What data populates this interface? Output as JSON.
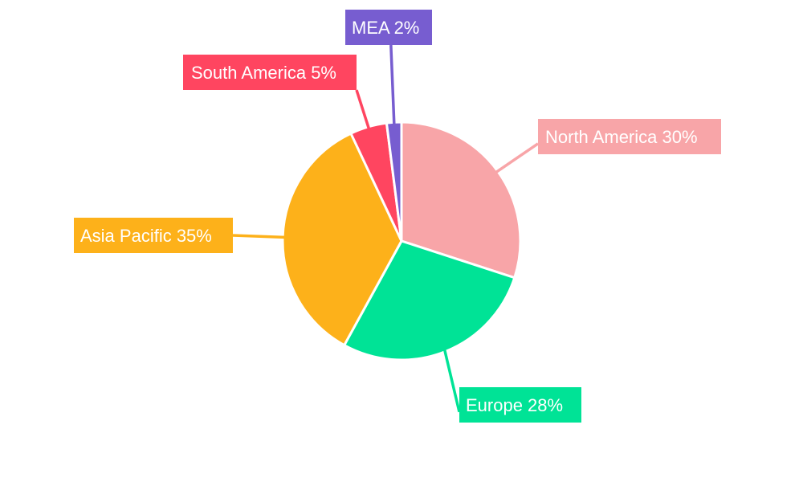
{
  "chart_data": {
    "type": "pie",
    "title": "",
    "start_angle_deg": 0,
    "direction": "clockwise",
    "legend": "none",
    "slices": [
      {
        "label": "North America 30%",
        "name": "North America",
        "value": 30,
        "color": "#F8A5A8"
      },
      {
        "label": "Europe 28%",
        "name": "Europe",
        "value": 28,
        "color": "#00E396"
      },
      {
        "label": "Asia Pacific 35%",
        "name": "Asia Pacific",
        "value": 35,
        "color": "#FDB11A"
      },
      {
        "label": "South America 5%",
        "name": "South America",
        "value": 5,
        "color": "#FF4560"
      },
      {
        "label": "MEA 2%",
        "name": "MEA",
        "value": 2,
        "color": "#775DD0"
      }
    ]
  }
}
